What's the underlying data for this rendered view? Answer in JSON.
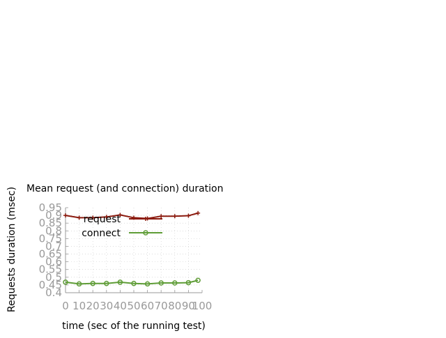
{
  "chart_data": {
    "type": "line",
    "title": "Mean request (and connection) duration",
    "xlabel": "time (sec of the running test)",
    "ylabel": "Requests duration (msec)",
    "xlim": [
      0,
      100
    ],
    "ylim": [
      0.4,
      0.95
    ],
    "xticks": [
      "0",
      "10",
      "20",
      "30",
      "40",
      "50",
      "60",
      "70",
      "80",
      "90",
      "100"
    ],
    "yticks": [
      "0.4",
      "0.45",
      "0.5",
      "0.55",
      "0.6",
      "0.65",
      "0.7",
      "0.75",
      "0.8",
      "0.85",
      "0.9",
      "0.95"
    ],
    "grid": true,
    "legend": "top-left inside plot",
    "series": [
      {
        "name": "request",
        "color": "#8b1a0e",
        "marker": "plus",
        "x": [
          0,
          10,
          20,
          30,
          40,
          50,
          60,
          70,
          80,
          90,
          97
        ],
        "y": [
          0.9,
          0.885,
          0.885,
          0.89,
          0.903,
          0.885,
          0.88,
          0.895,
          0.895,
          0.898,
          0.915
        ]
      },
      {
        "name": "connect",
        "color": "#5e9c36",
        "marker": "circle",
        "x": [
          0,
          10,
          20,
          30,
          40,
          50,
          60,
          70,
          80,
          90,
          97
        ],
        "y": [
          0.468,
          0.457,
          0.46,
          0.46,
          0.468,
          0.46,
          0.457,
          0.463,
          0.463,
          0.465,
          0.48
        ]
      }
    ]
  }
}
